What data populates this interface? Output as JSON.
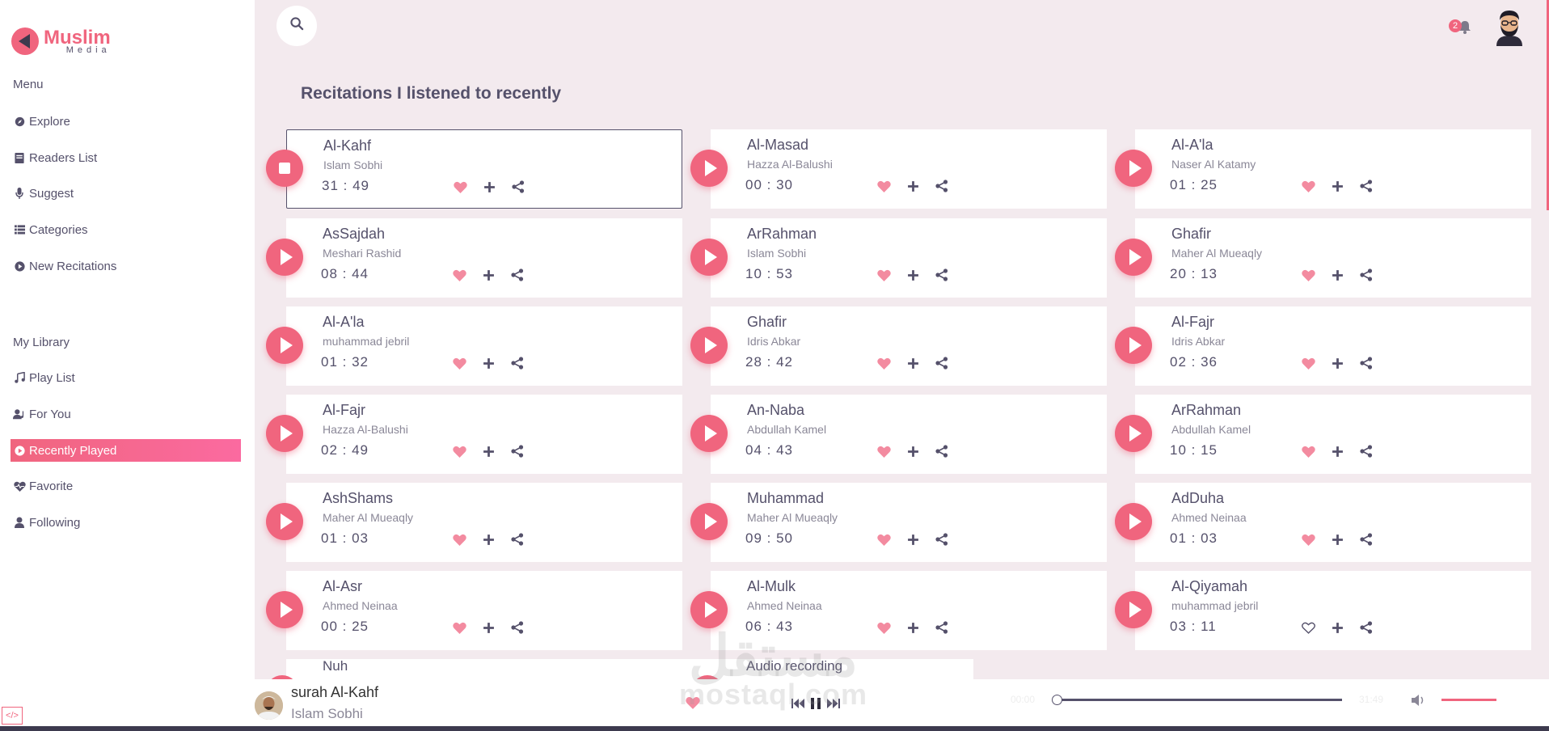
{
  "brand": {
    "name": "Muslim",
    "sub": "Media",
    "accent": "#f0657e"
  },
  "sidebar": {
    "menu_title": "Menu",
    "menu": [
      {
        "label": "Explore",
        "icon": "compass-icon"
      },
      {
        "label": "Readers List",
        "icon": "book-icon"
      },
      {
        "label": "Suggest",
        "icon": "microphone-icon"
      },
      {
        "label": "Categories",
        "icon": "list-icon"
      },
      {
        "label": "New Recitations",
        "icon": "play-circle-icon"
      }
    ],
    "library_title": "My Library",
    "library": [
      {
        "label": "Play List",
        "icon": "music-icon"
      },
      {
        "label": "For You",
        "icon": "user-music-icon"
      },
      {
        "label": "Recently Played",
        "icon": "play-circle-icon",
        "active": true
      },
      {
        "label": "Favorite",
        "icon": "heart-pulse-icon"
      },
      {
        "label": "Following",
        "icon": "user-icon"
      }
    ]
  },
  "header": {
    "notification_count": "2"
  },
  "page_title": "Recitations I listened to recently",
  "recitations": [
    {
      "title": "Al-Kahf",
      "reader": "Islam Sobhi",
      "time": "31 : 49",
      "playing": true,
      "liked": true
    },
    {
      "title": "Al-Masad",
      "reader": "Hazza Al-Balushi",
      "time": "00 : 30",
      "liked": true
    },
    {
      "title": "Al-A'la",
      "reader": "Naser Al Katamy",
      "time": "01 : 25",
      "liked": true
    },
    {
      "title": "AsSajdah",
      "reader": "Meshari Rashid",
      "time": "08 : 44",
      "liked": true
    },
    {
      "title": "ArRahman",
      "reader": "Islam Sobhi",
      "time": "10 : 53",
      "liked": true
    },
    {
      "title": "Ghafir",
      "reader": "Maher Al Mueaqly",
      "time": "20 : 13",
      "liked": true
    },
    {
      "title": "Al-A'la",
      "reader": "muhammad jebril",
      "time": "01 : 32",
      "liked": true
    },
    {
      "title": "Ghafir",
      "reader": "Idris Abkar",
      "time": "28 : 42",
      "liked": true
    },
    {
      "title": "Al-Fajr",
      "reader": "Idris Abkar",
      "time": "02 : 36",
      "liked": true
    },
    {
      "title": "Al-Fajr",
      "reader": "Hazza Al-Balushi",
      "time": "02 : 49",
      "liked": true
    },
    {
      "title": "An-Naba",
      "reader": "Abdullah Kamel",
      "time": "04 : 43",
      "liked": true
    },
    {
      "title": "ArRahman",
      "reader": "Abdullah Kamel",
      "time": "10 : 15",
      "liked": true
    },
    {
      "title": "AshShams",
      "reader": "Maher Al Mueaqly",
      "time": "01 : 03",
      "liked": true
    },
    {
      "title": "Muhammad",
      "reader": "Maher Al Mueaqly",
      "time": "09 : 50",
      "liked": true
    },
    {
      "title": "AdDuha",
      "reader": "Ahmed Neinaa",
      "time": "01 : 03",
      "liked": true
    },
    {
      "title": "Al-Asr",
      "reader": "Ahmed Neinaa",
      "time": "00 : 25",
      "liked": true
    },
    {
      "title": "Al-Mulk",
      "reader": "Ahmed Neinaa",
      "time": "06 : 43",
      "liked": true
    },
    {
      "title": "Al-Qiyamah",
      "reader": "muhammad jebril",
      "time": "03 : 11",
      "liked": false
    }
  ],
  "partial_cards": [
    {
      "title": "Nuh"
    },
    {
      "title": "Audio recording"
    }
  ],
  "player": {
    "title": "surah Al-Kahf",
    "reader": "Islam Sobhi",
    "time_current": "00:00",
    "time_total": "31:49",
    "progress": 0,
    "volume": 1
  },
  "watermark": {
    "main": "مستقل",
    "sub": "mostaql.com"
  }
}
